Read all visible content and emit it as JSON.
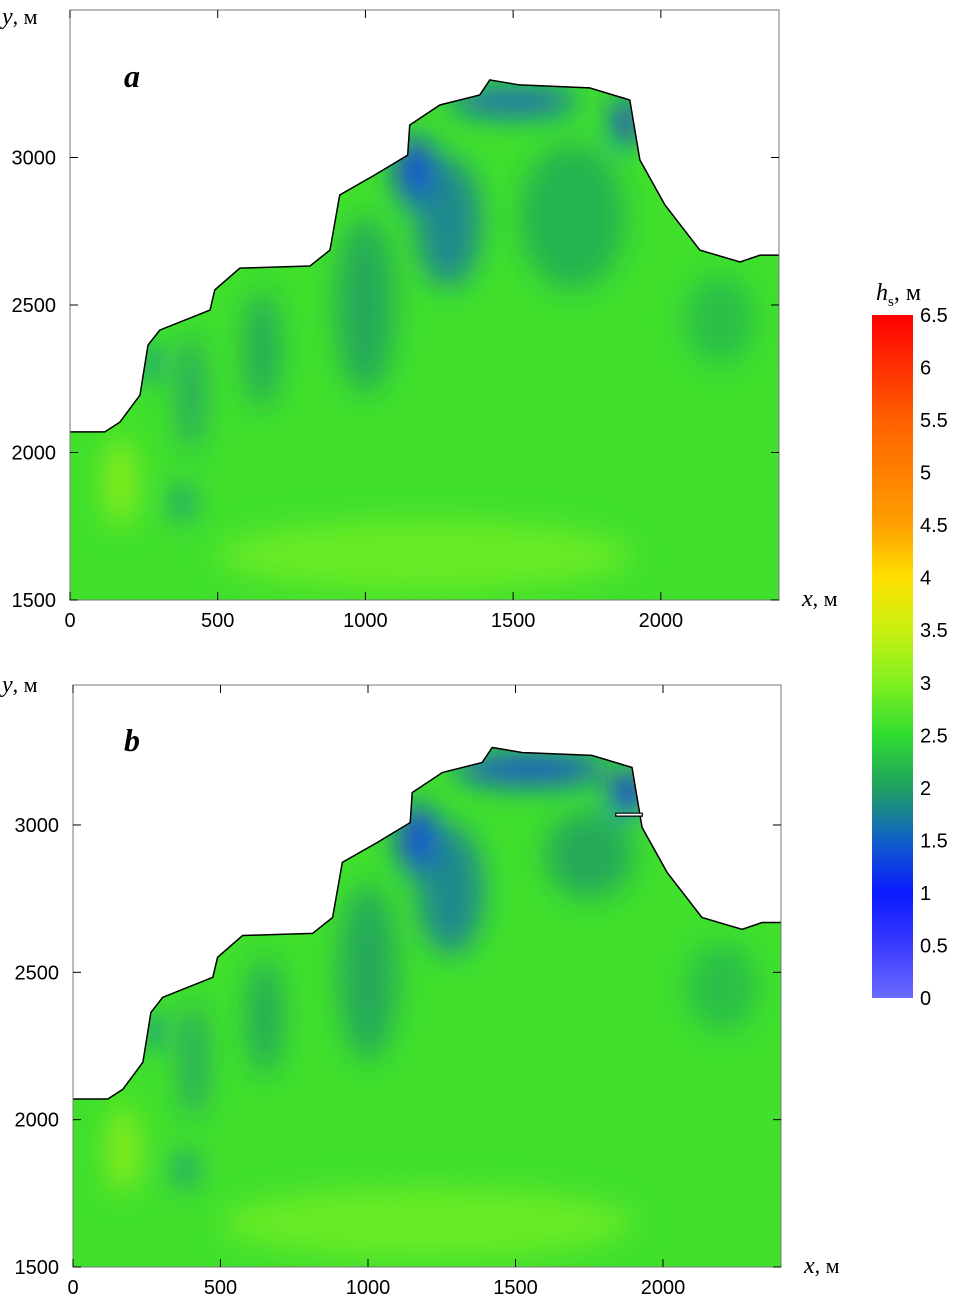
{
  "chart_data": [
    {
      "type": "heatmap",
      "panel_label": "a",
      "xlabel": "x",
      "xunit": "м",
      "ylabel": "y",
      "yunit": "м",
      "xlim": [
        0,
        2400
      ],
      "ylim": [
        1500,
        3500
      ],
      "xticks": [
        0,
        500,
        1000,
        1500,
        2000
      ],
      "yticks": [
        1500,
        2000,
        2500,
        3000
      ],
      "background_value": 2.6,
      "coastline": [
        [
          0,
          2070
        ],
        [
          118,
          2070
        ],
        [
          169,
          2103
        ],
        [
          237,
          2195
        ],
        [
          264,
          2364
        ],
        [
          304,
          2415
        ],
        [
          389,
          2449
        ],
        [
          474,
          2483
        ],
        [
          490,
          2551
        ],
        [
          575,
          2625
        ],
        [
          812,
          2632
        ],
        [
          880,
          2686
        ],
        [
          913,
          2873
        ],
        [
          1032,
          2941
        ],
        [
          1143,
          3008
        ],
        [
          1150,
          3110
        ],
        [
          1252,
          3178
        ],
        [
          1387,
          3212
        ],
        [
          1421,
          3263
        ],
        [
          1522,
          3246
        ],
        [
          1759,
          3236
        ],
        [
          1895,
          3195
        ],
        [
          1929,
          2992
        ],
        [
          2014,
          2839
        ],
        [
          2132,
          2686
        ],
        [
          2268,
          2646
        ],
        [
          2336,
          2669
        ],
        [
          2400,
          2669
        ],
        [
          2400,
          1500
        ],
        [
          0,
          1500
        ]
      ],
      "zones": [
        {
          "x": 1170,
          "y": 2950,
          "rx": 70,
          "ry": 120,
          "value": 1.1
        },
        {
          "x": 1280,
          "y": 2780,
          "rx": 110,
          "ry": 220,
          "value": 1.7
        },
        {
          "x": 1500,
          "y": 3190,
          "rx": 220,
          "ry": 50,
          "value": 1.4
        },
        {
          "x": 1880,
          "y": 3120,
          "rx": 40,
          "ry": 90,
          "value": 1.0
        },
        {
          "x": 1700,
          "y": 2800,
          "rx": 180,
          "ry": 250,
          "value": 2.1
        },
        {
          "x": 270,
          "y": 2300,
          "rx": 30,
          "ry": 60,
          "value": 1.5
        },
        {
          "x": 380,
          "y": 1830,
          "rx": 30,
          "ry": 60,
          "value": 1.6
        },
        {
          "x": 410,
          "y": 2200,
          "rx": 40,
          "ry": 200,
          "value": 1.9
        },
        {
          "x": 650,
          "y": 2350,
          "rx": 60,
          "ry": 200,
          "value": 2.0
        },
        {
          "x": 1000,
          "y": 2500,
          "rx": 100,
          "ry": 300,
          "value": 2.0
        },
        {
          "x": 2200,
          "y": 2450,
          "rx": 120,
          "ry": 150,
          "value": 2.2
        },
        {
          "x": 170,
          "y": 1900,
          "rx": 50,
          "ry": 150,
          "value": 3.2
        },
        {
          "x": 1200,
          "y": 1650,
          "rx": 700,
          "ry": 120,
          "value": 2.9
        }
      ],
      "structure": null
    },
    {
      "type": "heatmap",
      "panel_label": "b",
      "xlabel": "x",
      "xunit": "м",
      "ylabel": "y",
      "yunit": "м",
      "xlim": [
        0,
        2400
      ],
      "ylim": [
        1500,
        3475
      ],
      "xticks": [
        0,
        500,
        1000,
        1500,
        2000
      ],
      "yticks": [
        1500,
        2000,
        2500,
        3000
      ],
      "background_value": 2.6,
      "coastline": [
        [
          0,
          2070
        ],
        [
          118,
          2070
        ],
        [
          169,
          2103
        ],
        [
          237,
          2195
        ],
        [
          264,
          2364
        ],
        [
          304,
          2415
        ],
        [
          389,
          2449
        ],
        [
          474,
          2483
        ],
        [
          490,
          2551
        ],
        [
          575,
          2625
        ],
        [
          812,
          2632
        ],
        [
          880,
          2686
        ],
        [
          913,
          2873
        ],
        [
          1032,
          2941
        ],
        [
          1143,
          3008
        ],
        [
          1150,
          3110
        ],
        [
          1252,
          3178
        ],
        [
          1387,
          3212
        ],
        [
          1421,
          3263
        ],
        [
          1522,
          3246
        ],
        [
          1759,
          3236
        ],
        [
          1895,
          3195
        ],
        [
          1929,
          2992
        ],
        [
          2014,
          2839
        ],
        [
          2132,
          2686
        ],
        [
          2268,
          2646
        ],
        [
          2336,
          2669
        ],
        [
          2400,
          2669
        ],
        [
          2400,
          1500
        ],
        [
          0,
          1500
        ]
      ],
      "zones": [
        {
          "x": 1170,
          "y": 2950,
          "rx": 70,
          "ry": 120,
          "value": 1.1
        },
        {
          "x": 1280,
          "y": 2780,
          "rx": 110,
          "ry": 220,
          "value": 1.7
        },
        {
          "x": 1550,
          "y": 3190,
          "rx": 260,
          "ry": 60,
          "value": 1.3
        },
        {
          "x": 1880,
          "y": 3110,
          "rx": 60,
          "ry": 80,
          "value": 0.9
        },
        {
          "x": 1750,
          "y": 2900,
          "rx": 150,
          "ry": 150,
          "value": 2.0
        },
        {
          "x": 270,
          "y": 2300,
          "rx": 30,
          "ry": 60,
          "value": 1.5
        },
        {
          "x": 380,
          "y": 1830,
          "rx": 30,
          "ry": 60,
          "value": 1.6
        },
        {
          "x": 410,
          "y": 2200,
          "rx": 40,
          "ry": 200,
          "value": 1.9
        },
        {
          "x": 650,
          "y": 2350,
          "rx": 60,
          "ry": 200,
          "value": 2.0
        },
        {
          "x": 1000,
          "y": 2500,
          "rx": 100,
          "ry": 300,
          "value": 2.0
        },
        {
          "x": 2200,
          "y": 2450,
          "rx": 120,
          "ry": 150,
          "value": 2.2
        },
        {
          "x": 170,
          "y": 1900,
          "rx": 50,
          "ry": 150,
          "value": 3.2
        },
        {
          "x": 1200,
          "y": 1650,
          "rx": 700,
          "ry": 120,
          "value": 2.9
        }
      ],
      "structure": [
        [
          1840,
          3030
        ],
        [
          1930,
          3030
        ],
        [
          1930,
          3040
        ],
        [
          1840,
          3040
        ]
      ]
    }
  ],
  "colorbar": {
    "title": "h",
    "title_sub": "s",
    "unit": ", м",
    "min": 0,
    "max": 6.5,
    "tick_labels": [
      "0",
      "0.5",
      "1",
      "1.5",
      "2",
      "2.5",
      "3",
      "3.5",
      "4",
      "4.5",
      "5",
      "5.5",
      "6",
      "6.5"
    ],
    "stops": [
      {
        "v": 0,
        "c": "#6b6bff"
      },
      {
        "v": 0.5,
        "c": "#3a3aff"
      },
      {
        "v": 1,
        "c": "#0a1aff"
      },
      {
        "v": 1.5,
        "c": "#1060c8"
      },
      {
        "v": 2,
        "c": "#1fa060"
      },
      {
        "v": 2.5,
        "c": "#30dc30"
      },
      {
        "v": 3,
        "c": "#80f020"
      },
      {
        "v": 3.5,
        "c": "#c8f010"
      },
      {
        "v": 4,
        "c": "#ffe000"
      },
      {
        "v": 4.5,
        "c": "#ffa000"
      },
      {
        "v": 5,
        "c": "#ff8000"
      },
      {
        "v": 5.5,
        "c": "#ff6000"
      },
      {
        "v": 6,
        "c": "#ff3000"
      },
      {
        "v": 6.5,
        "c": "#ff0000"
      }
    ]
  },
  "labels": {
    "x": "x",
    "y": "y",
    "unit": ", м",
    "a": "a",
    "b": "b"
  }
}
